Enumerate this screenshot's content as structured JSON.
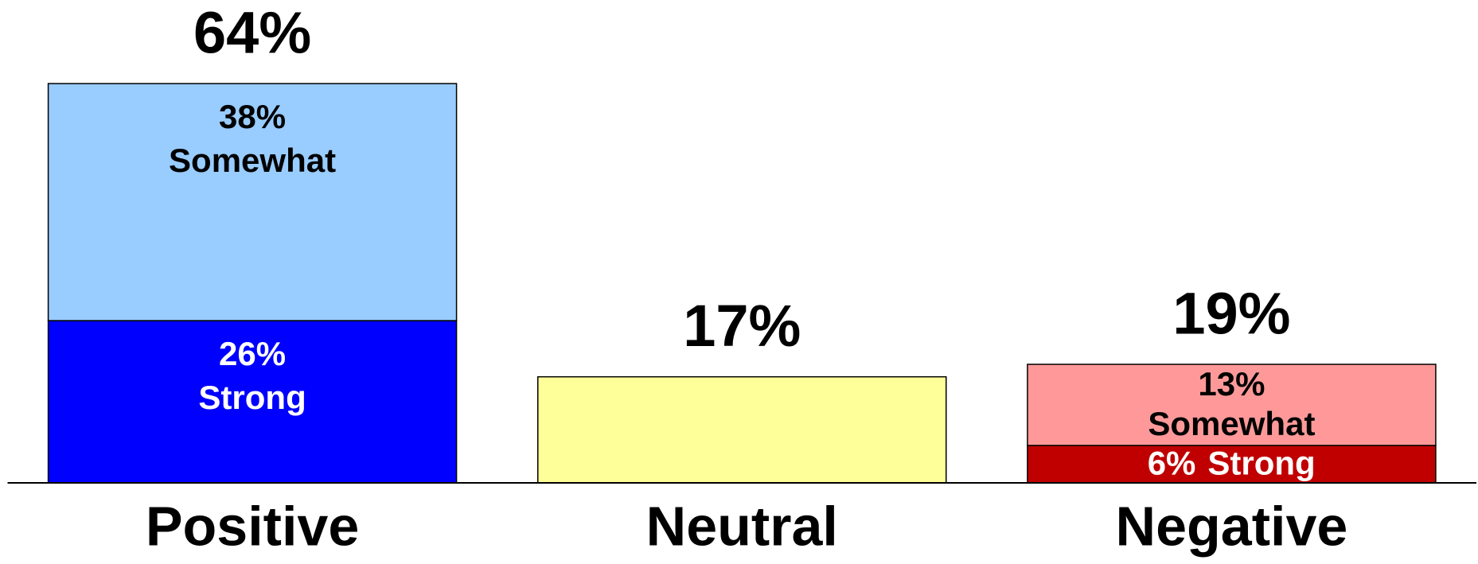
{
  "chart_data": {
    "type": "stacked-bar",
    "categories": [
      "Positive",
      "Neutral",
      "Negative"
    ],
    "series": [
      {
        "name": "Strong",
        "values": [
          26,
          null,
          6
        ],
        "colors": [
          "#0000ff",
          null,
          "#c00000"
        ],
        "value_labels": [
          "26%",
          null,
          "6%"
        ]
      },
      {
        "name": "Somewhat",
        "values": [
          38,
          null,
          13
        ],
        "colors": [
          "#99ccff",
          null,
          "#ff9999"
        ],
        "value_labels": [
          "38%",
          null,
          "13%"
        ]
      },
      {
        "values": [
          null,
          17,
          null
        ],
        "colors": [
          null,
          "#ffff99",
          null
        ]
      }
    ],
    "totals": [
      64,
      17,
      19
    ],
    "total_labels": [
      "64%",
      "17%",
      "19%"
    ],
    "ylim": [
      0,
      70
    ]
  }
}
